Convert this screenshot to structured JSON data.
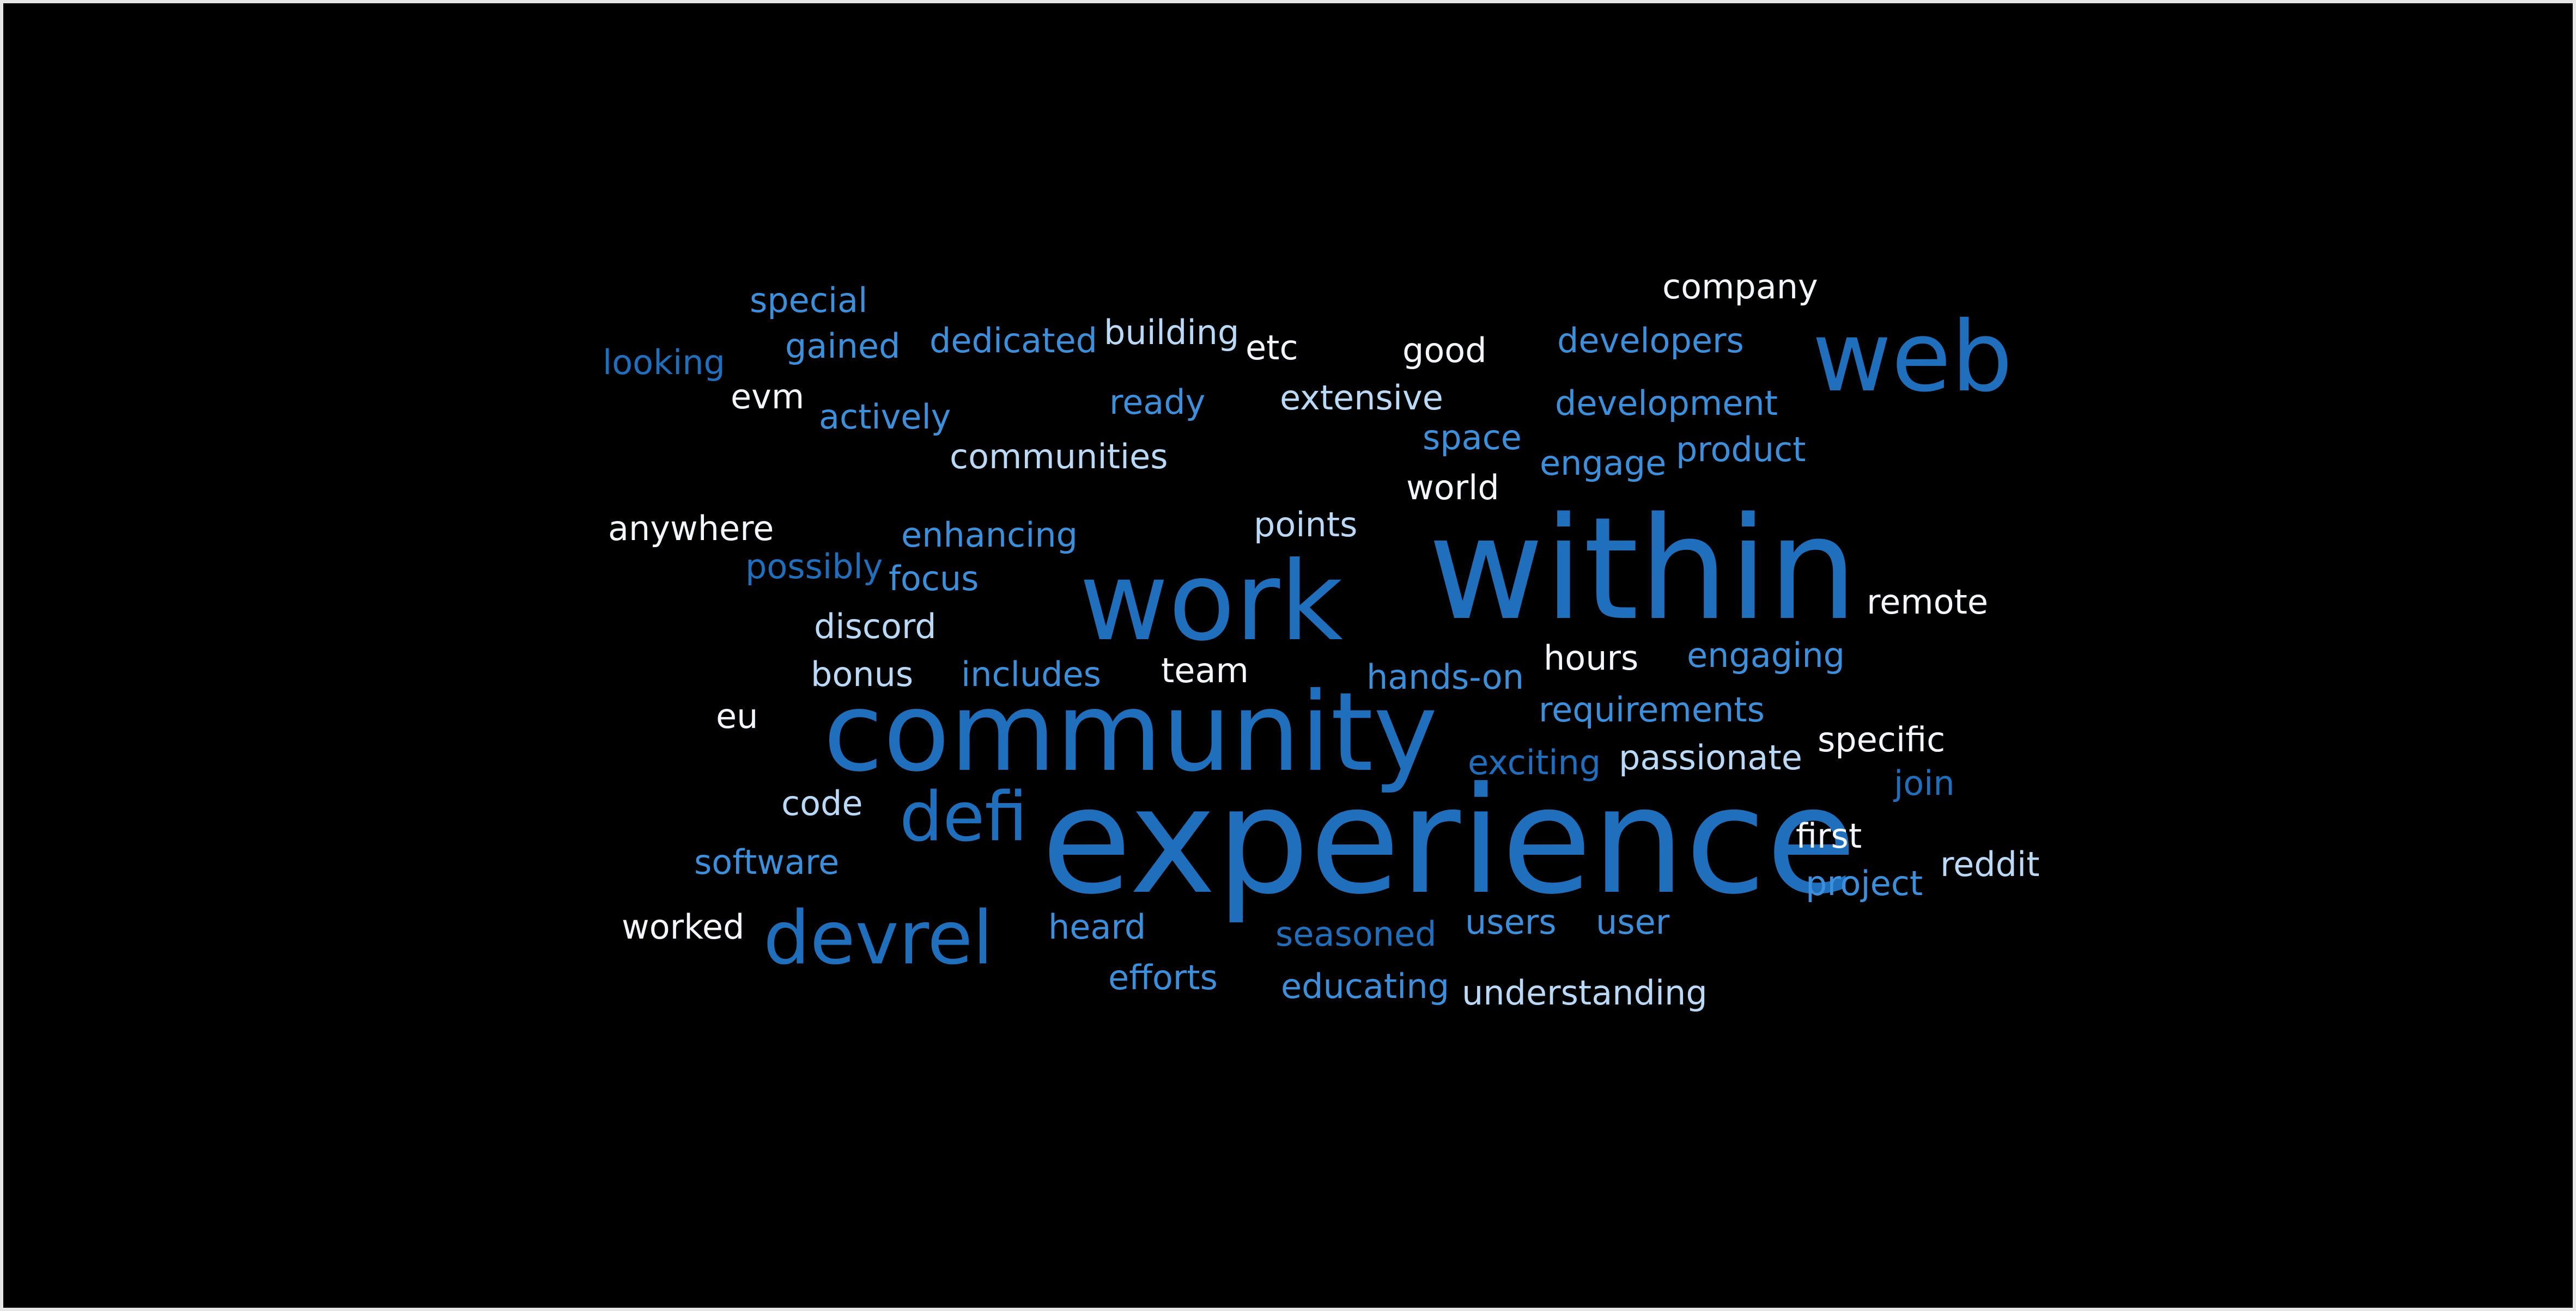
{
  "palette": {
    "background": "#000000",
    "dark_blue": "#1f6fbd",
    "mid_blue": "#3c8fdb",
    "light_blue": "#b9d9f6",
    "white": "#f2f6fb"
  },
  "words": [
    {
      "text": "experience",
      "color": "#1f6fbd"
    },
    {
      "text": "within",
      "color": "#1f6fbd"
    },
    {
      "text": "community",
      "color": "#1f6fbd"
    },
    {
      "text": "work",
      "color": "#1f6fbd"
    },
    {
      "text": "web",
      "color": "#1f6fbd"
    },
    {
      "text": "devrel",
      "color": "#1f6fbd"
    },
    {
      "text": "defi",
      "color": "#1f6fbd"
    },
    {
      "text": "special",
      "color": "#3c8fdb"
    },
    {
      "text": "company",
      "color": "#f2f6fb"
    },
    {
      "text": "gained",
      "color": "#3c8fdb"
    },
    {
      "text": "dedicated",
      "color": "#3c8fdb"
    },
    {
      "text": "building",
      "color": "#b9d9f6"
    },
    {
      "text": "etc",
      "color": "#f2f6fb"
    },
    {
      "text": "good",
      "color": "#f2f6fb"
    },
    {
      "text": "developers",
      "color": "#3c8fdb"
    },
    {
      "text": "looking",
      "color": "#1f6fbd"
    },
    {
      "text": "evm",
      "color": "#f2f6fb"
    },
    {
      "text": "actively",
      "color": "#3c8fdb"
    },
    {
      "text": "ready",
      "color": "#3c8fdb"
    },
    {
      "text": "extensive",
      "color": "#b9d9f6"
    },
    {
      "text": "development",
      "color": "#3c8fdb"
    },
    {
      "text": "space",
      "color": "#3c8fdb"
    },
    {
      "text": "communities",
      "color": "#b9d9f6"
    },
    {
      "text": "engage",
      "color": "#3c8fdb"
    },
    {
      "text": "product",
      "color": "#3c8fdb"
    },
    {
      "text": "world",
      "color": "#f2f6fb"
    },
    {
      "text": "anywhere",
      "color": "#f2f6fb"
    },
    {
      "text": "enhancing",
      "color": "#3c8fdb"
    },
    {
      "text": "points",
      "color": "#b9d9f6"
    },
    {
      "text": "possibly",
      "color": "#1f6fbd"
    },
    {
      "text": "focus",
      "color": "#3c8fdb"
    },
    {
      "text": "remote",
      "color": "#f2f6fb"
    },
    {
      "text": "discord",
      "color": "#b9d9f6"
    },
    {
      "text": "bonus",
      "color": "#b9d9f6"
    },
    {
      "text": "includes",
      "color": "#3c8fdb"
    },
    {
      "text": "team",
      "color": "#f2f6fb"
    },
    {
      "text": "hands-on",
      "color": "#3c8fdb"
    },
    {
      "text": "hours",
      "color": "#f2f6fb"
    },
    {
      "text": "engaging",
      "color": "#3c8fdb"
    },
    {
      "text": "eu",
      "color": "#f2f6fb"
    },
    {
      "text": "requirements",
      "color": "#3c8fdb"
    },
    {
      "text": "specific",
      "color": "#f2f6fb"
    },
    {
      "text": "exciting",
      "color": "#1f6fbd"
    },
    {
      "text": "passionate",
      "color": "#b9d9f6"
    },
    {
      "text": "join",
      "color": "#1f6fbd"
    },
    {
      "text": "code",
      "color": "#b9d9f6"
    },
    {
      "text": "first",
      "color": "#f2f6fb"
    },
    {
      "text": "software",
      "color": "#3c8fdb"
    },
    {
      "text": "project",
      "color": "#3c8fdb"
    },
    {
      "text": "reddit",
      "color": "#b9d9f6"
    },
    {
      "text": "worked",
      "color": "#f2f6fb"
    },
    {
      "text": "heard",
      "color": "#3c8fdb"
    },
    {
      "text": "seasoned",
      "color": "#1f6fbd"
    },
    {
      "text": "users",
      "color": "#3c8fdb"
    },
    {
      "text": "user",
      "color": "#3c8fdb"
    },
    {
      "text": "efforts",
      "color": "#3c8fdb"
    },
    {
      "text": "educating",
      "color": "#3c8fdb"
    },
    {
      "text": "understanding",
      "color": "#b9d9f6"
    }
  ]
}
